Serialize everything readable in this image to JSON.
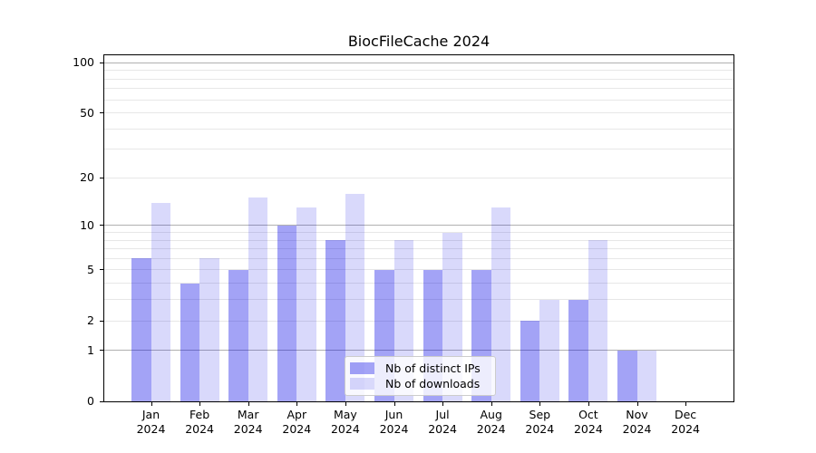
{
  "title": "BiocFileCache 2024",
  "chart_data": {
    "type": "bar",
    "title": "BiocFileCache 2024",
    "categories": [
      "Jan",
      "Feb",
      "Mar",
      "Apr",
      "May",
      "Jun",
      "Jul",
      "Aug",
      "Sep",
      "Oct",
      "Nov",
      "Dec"
    ],
    "x_year_label": "2024",
    "series": [
      {
        "name": "Nb of distinct IPs",
        "color": "rgba(0, 0, 230, 0.36)",
        "values": [
          6,
          4,
          5,
          10,
          8,
          5,
          5,
          5,
          2,
          3,
          1,
          0
        ]
      },
      {
        "name": "Nb of downloads",
        "color": "rgba(0, 0, 230, 0.15)",
        "values": [
          14,
          6,
          15,
          13,
          16,
          8,
          9,
          13,
          3,
          8,
          1,
          0
        ]
      }
    ],
    "xlabel": "",
    "ylabel": "",
    "yscale": "log10(1+x)",
    "ylim": [
      0,
      111
    ],
    "yticks": [
      100,
      50,
      20,
      10,
      5,
      2,
      1,
      0
    ],
    "minor_gridlines": [
      2,
      3,
      4,
      5,
      6,
      7,
      8,
      9,
      20,
      30,
      40,
      50,
      60,
      70,
      80,
      90
    ],
    "major_gridlines": [
      1,
      10,
      100
    ],
    "grid": "on",
    "legend_position": "lower center",
    "colors": {
      "distinct_ips_on_white": "#a4a4f1",
      "downloads_on_white": "#d9d9f7",
      "minor_grid": "#e7e7e7",
      "major_grid": "#b0b0b0",
      "spine": "#000000",
      "text": "#000000"
    }
  }
}
